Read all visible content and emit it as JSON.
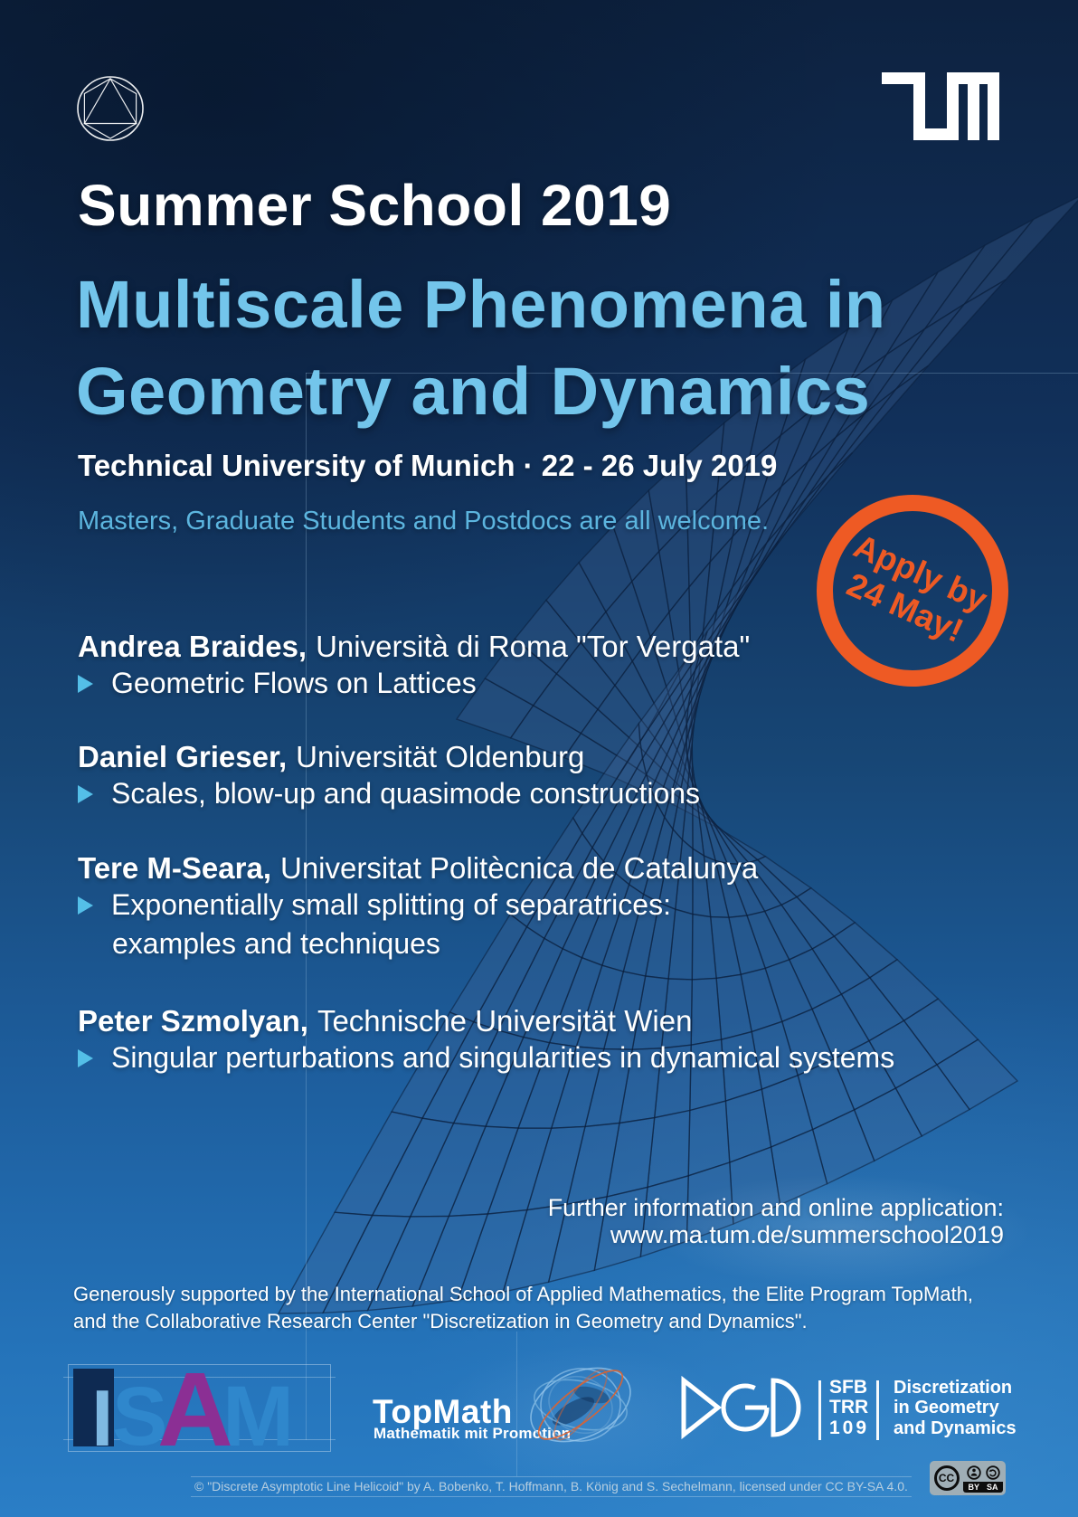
{
  "header": {
    "school": "Summer School 2019",
    "title_line1": "Multiscale Phenomena in",
    "title_line2": "Geometry and Dynamics",
    "venue_date": "Technical University of Munich · 22 - 26 July 2019",
    "welcome": "Masters, Graduate Students and Postdocs are all welcome."
  },
  "badge": {
    "line1": "Apply by",
    "line2": "24 May!"
  },
  "speakers": [
    {
      "name": "Andrea Braides,",
      "affiliation": "Università di Roma \"Tor Vergata\"",
      "talk_lines": [
        "Geometric Flows on Lattices"
      ]
    },
    {
      "name": "Daniel Grieser,",
      "affiliation": "Universität Oldenburg",
      "talk_lines": [
        "Scales, blow-up and quasimode constructions"
      ]
    },
    {
      "name": "Tere M-Seara,",
      "affiliation": "Universitat Politècnica de Catalunya",
      "talk_lines": [
        "Exponentially small splitting of separatrices:",
        "examples and techniques"
      ]
    },
    {
      "name": "Peter Szmolyan,",
      "affiliation": "Technische Universität Wien",
      "talk_lines": [
        "Singular perturbations and singularities in dynamical systems"
      ]
    }
  ],
  "further": {
    "line1": "Further information and online application:",
    "line2": "www.ma.tum.de/summerschool2019"
  },
  "support": {
    "line1": "Generously supported by the International School of Applied Mathematics, the Elite Program TopMath,",
    "line2": "and the Collaborative Research Center \"Discretization in Geometry and Dynamics\"."
  },
  "logos": {
    "isam": {
      "i": "I",
      "s": "S",
      "a": "A",
      "m": "M"
    },
    "topmath": {
      "name": "TopMath",
      "subtitle": "Mathematik mit Promotion"
    },
    "dgd": {
      "sfb": "SFB",
      "trr": "TRR",
      "num": "109",
      "line1": "Discretization",
      "line2": "in Geometry",
      "line3": "and Dynamics"
    }
  },
  "credit": {
    "text": "© \"Discrete Asymptotic Line Helicoid\" by A. Bobenko, T. Hoffmann, B. König and S. Sechelmann, licensed under CC BY-SA 4.0.",
    "cc": "CC",
    "by": "BY",
    "sa": "SA"
  },
  "colors": {
    "title_blue": "#73C5EB",
    "welcome_blue": "#5CB5DF",
    "accent_orange": "#EE5A24",
    "bullet_blue": "#54BFE8",
    "bg_top": "#0d2240",
    "bg_bottom": "#2a7ec6",
    "isam_blue": "#2f87cc",
    "isam_purple": "#8b2f94"
  }
}
